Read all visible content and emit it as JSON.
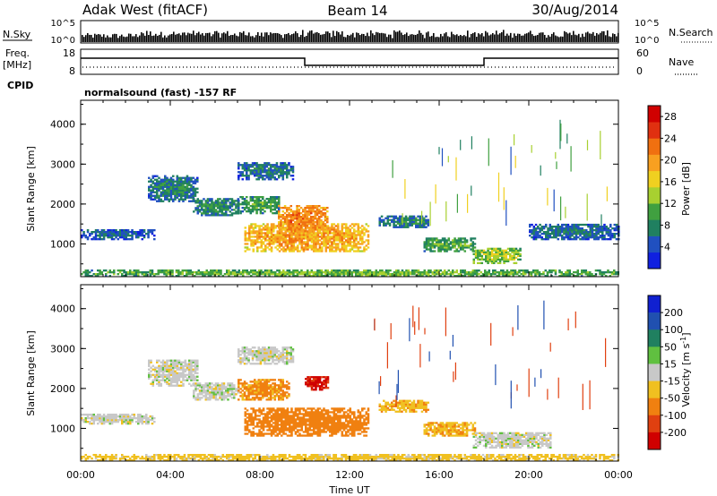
{
  "header": {
    "station": "Adak West (fitACF)",
    "beam": "Beam 14",
    "date": "30/Aug/2014"
  },
  "noise_panel": {
    "left_label": "N.Sky",
    "right_label": "N.Search",
    "ticks_left": [
      "10^5",
      "10^0"
    ],
    "ticks_right": [
      "10^5",
      "10^0"
    ]
  },
  "freq_panel": {
    "left_label": "Freq.",
    "left_unit": "[MHz]",
    "right_label": "Nave",
    "ticks_left": [
      "18",
      "8"
    ],
    "ticks_right": [
      "60",
      "0"
    ],
    "freq_steps": [
      {
        "from": "00:00",
        "to": "10:00",
        "level": "high"
      },
      {
        "from": "10:00",
        "to": "18:00",
        "level": "low"
      },
      {
        "from": "18:00",
        "to": "24:00",
        "level": "high"
      }
    ]
  },
  "cpid": {
    "label": "CPID",
    "mode": "normalsound (fast) -157 RF"
  },
  "chart_data": [
    {
      "type": "heatmap",
      "quantity": "Power",
      "ylabel": "Slant Range [km]",
      "xlabel": "Time UT",
      "x_ticks": [
        "00:00",
        "04:00",
        "08:00",
        "12:00",
        "16:00",
        "20:00",
        "00:00"
      ],
      "y_ticks": [
        1000,
        2000,
        3000,
        4000
      ],
      "xlim_hours": [
        0,
        24
      ],
      "ylim_km": [
        180,
        4600
      ],
      "colorbar": {
        "label": "Power [dB]",
        "ticks": [
          4,
          8,
          12,
          16,
          20,
          24,
          28
        ],
        "range": [
          0,
          30
        ],
        "colors": [
          "#1020e0",
          "#2050c0",
          "#208060",
          "#40a040",
          "#a8d030",
          "#f0d020",
          "#f8a020",
          "#f07010",
          "#e03010",
          "#d00000"
        ]
      },
      "echo_regions": [
        {
          "t0": 0.0,
          "t1": 3.3,
          "r0": 1100,
          "r1": 1350,
          "level": 4
        },
        {
          "t0": 3.0,
          "t1": 5.2,
          "r0": 2050,
          "r1": 2700,
          "level": 6
        },
        {
          "t0": 5.0,
          "t1": 7.0,
          "r0": 1700,
          "r1": 2150,
          "level": 7
        },
        {
          "t0": 7.0,
          "t1": 9.5,
          "r0": 2600,
          "r1": 3050,
          "level": 5
        },
        {
          "t0": 7.0,
          "t1": 8.8,
          "r0": 1750,
          "r1": 2200,
          "level": 8
        },
        {
          "t0": 7.3,
          "t1": 12.8,
          "r0": 800,
          "r1": 1500,
          "level": 18
        },
        {
          "t0": 8.8,
          "t1": 11.0,
          "r0": 1300,
          "r1": 1950,
          "level": 20
        },
        {
          "t0": 13.3,
          "t1": 15.5,
          "r0": 1400,
          "r1": 1700,
          "level": 6
        },
        {
          "t0": 15.3,
          "t1": 17.6,
          "r0": 800,
          "r1": 1150,
          "level": 9
        },
        {
          "t0": 17.5,
          "t1": 19.6,
          "r0": 500,
          "r1": 900,
          "level": 12
        },
        {
          "t0": 20.0,
          "t1": 24.0,
          "r0": 1100,
          "r1": 1500,
          "level": 5
        },
        {
          "t0": 0.0,
          "t1": 24.0,
          "r0": 180,
          "r1": 320,
          "level": 10
        }
      ]
    },
    {
      "type": "heatmap",
      "quantity": "Velocity",
      "ylabel": "Slant Range [km]",
      "xlabel": "Time UT",
      "x_ticks": [
        "00:00",
        "04:00",
        "08:00",
        "12:00",
        "16:00",
        "20:00",
        "00:00"
      ],
      "y_ticks": [
        1000,
        2000,
        3000,
        4000
      ],
      "xlim_hours": [
        0,
        24
      ],
      "ylim_km": [
        180,
        4600
      ],
      "colorbar": {
        "label": "Velocity [m s^-1]",
        "ticks": [
          200,
          100,
          50,
          15,
          -15,
          -50,
          -100,
          -200
        ],
        "colors": [
          "#1020d0",
          "#2050b0",
          "#208060",
          "#60c040",
          "#c8c8c8",
          "#f0c020",
          "#f08010",
          "#e04010",
          "#d00000"
        ]
      },
      "echo_regions": [
        {
          "t0": 0.0,
          "t1": 3.3,
          "r0": 1100,
          "r1": 1350,
          "level": 0
        },
        {
          "t0": 3.0,
          "t1": 5.2,
          "r0": 2050,
          "r1": 2700,
          "level": 0
        },
        {
          "t0": 5.0,
          "t1": 7.0,
          "r0": 1700,
          "r1": 2150,
          "level": 0
        },
        {
          "t0": 7.0,
          "t1": 9.5,
          "r0": 2600,
          "r1": 3050,
          "level": 0
        },
        {
          "t0": 7.0,
          "t1": 9.3,
          "r0": 1700,
          "r1": 2200,
          "level": -60
        },
        {
          "t0": 7.3,
          "t1": 12.8,
          "r0": 800,
          "r1": 1500,
          "level": -70
        },
        {
          "t0": 10.0,
          "t1": 11.0,
          "r0": 1950,
          "r1": 2300,
          "level": -210
        },
        {
          "t0": 13.3,
          "t1": 15.5,
          "r0": 1400,
          "r1": 1700,
          "level": -40
        },
        {
          "t0": 15.3,
          "t1": 17.6,
          "r0": 800,
          "r1": 1150,
          "level": -40
        },
        {
          "t0": 17.5,
          "t1": 21.0,
          "r0": 500,
          "r1": 900,
          "level": 0
        },
        {
          "t0": 0.0,
          "t1": 24.0,
          "r0": 180,
          "r1": 320,
          "level": -30
        }
      ]
    }
  ]
}
